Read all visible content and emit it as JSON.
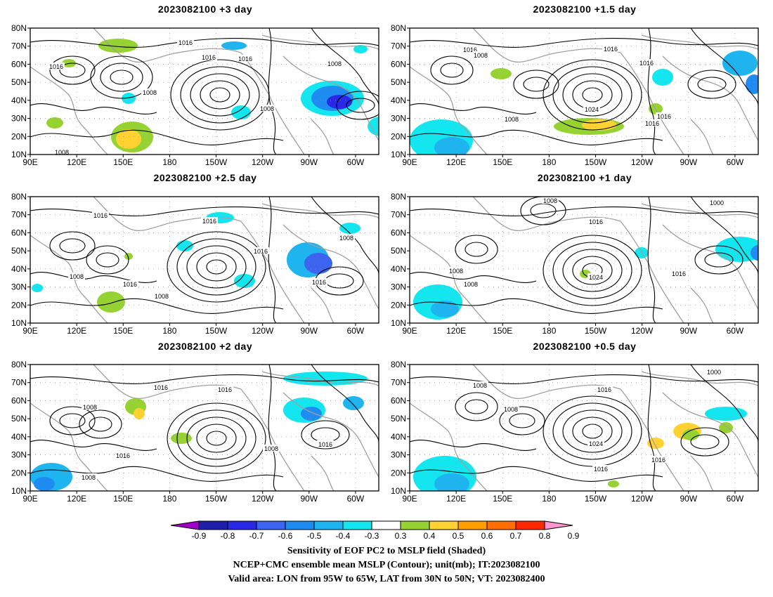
{
  "panels": [
    {
      "title": "2023082100  +3 day"
    },
    {
      "title": "2023082100  +1.5 day"
    },
    {
      "title": "2023082100  +2.5 day"
    },
    {
      "title": "2023082100  +1 day"
    },
    {
      "title": "2023082100  +2 day"
    },
    {
      "title": "2023082100  +0.5 day"
    }
  ],
  "axes": {
    "lon_ticks": [
      "90E",
      "120E",
      "150E",
      "180",
      "150W",
      "120W",
      "90W",
      "60W"
    ],
    "lat_ticks": [
      "10N",
      "20N",
      "30N",
      "40N",
      "50N",
      "60N",
      "70N",
      "80N"
    ]
  },
  "contour_labels": {
    "p0": [
      "1016",
      "1016",
      "1016",
      "1008",
      "1016",
      "1008",
      "1008",
      "1008"
    ],
    "p1": [
      "1016",
      "1008",
      "1016",
      "1016",
      "1024",
      "1016",
      "1016",
      "1008"
    ],
    "p2": [
      "1016",
      "1016",
      "1016",
      "1008",
      "1008",
      "1016",
      "1016",
      "1008"
    ],
    "p3": [
      "1008",
      "1016",
      "1000",
      "1008",
      "1008",
      "1024",
      "1016"
    ],
    "p4": [
      "1016",
      "1016",
      "1008",
      "1016",
      "1008",
      "1016",
      "1008"
    ],
    "p5": [
      "1008",
      "1016",
      "1000",
      "1008",
      "1024",
      "1016",
      "1016"
    ]
  },
  "colorbar": {
    "labels": [
      "-0.9",
      "-0.8",
      "-0.7",
      "-0.6",
      "-0.5",
      "-0.4",
      "-0.3",
      "0.3",
      "0.4",
      "0.5",
      "0.6",
      "0.7",
      "0.8",
      "0.9"
    ],
    "colors": [
      "#a000c8",
      "#1e1eaa",
      "#2828e6",
      "#3c64f0",
      "#1e8cf0",
      "#1eb4f0",
      "#14e6f0",
      "#ffffff",
      "#96d232",
      "#ffd232",
      "#ffa000",
      "#ff6e00",
      "#ff2800",
      "#ff96d2"
    ]
  },
  "footer": {
    "line1": "Sensitivity of EOF PC2 to MSLP field (Shaded)",
    "line2": "NCEP+CMC ensemble mean MSLP (Contour); unit(mb); IT:2023082100",
    "line3": "Valid area: LON from 95W to 65W, LAT from 30N to 50N; VT: 2023082400"
  }
}
